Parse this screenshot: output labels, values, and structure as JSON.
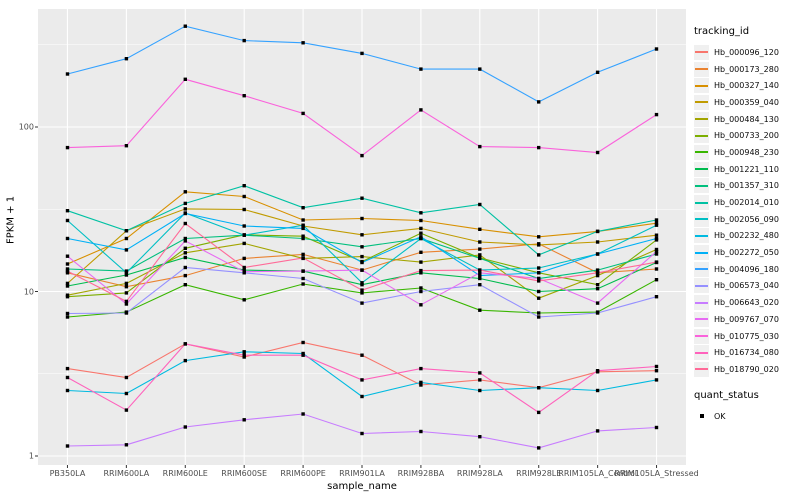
{
  "chart_data": {
    "type": "line",
    "title": "",
    "xlabel": "sample_name",
    "ylabel": "FPKM + 1",
    "y_scale": "log10",
    "ylim": [
      0.88,
      550
    ],
    "y_ticks": [
      "1",
      "10",
      "100"
    ],
    "grid": "ggplot-gray-panel-white-gridlines",
    "legend_position": "right",
    "legend_title": "tracking_id",
    "quant_legend_title": "quant_status",
    "quant_legend_items": [
      "OK"
    ],
    "marker": "black-square",
    "x_categories": [
      "PB350LA",
      "RRIM600LA",
      "RRIM600LE",
      "RRIM600SE",
      "RRIM600PE",
      "RRIM901LA",
      "RRIM928BA",
      "RRIM928LA",
      "RRIM928LE",
      "RRIM105LA_Control",
      "RRIM105LA_Stressed"
    ],
    "series": [
      {
        "name": "Hb_000096_120",
        "color": "#F8766D",
        "values": [
          3.4,
          3.0,
          4.8,
          4.0,
          4.9,
          4.1,
          2.7,
          2.9,
          2.6,
          3.25,
          3.3
        ]
      },
      {
        "name": "Hb_000173_280",
        "color": "#EA8331",
        "values": [
          13.0,
          10.7,
          12.5,
          15.9,
          16.8,
          13.5,
          17.3,
          18.1,
          19.5,
          13.0,
          13.7
        ]
      },
      {
        "name": "Hb_000327_140",
        "color": "#D89000",
        "values": [
          14.7,
          21.0,
          40.4,
          37.8,
          27.2,
          27.8,
          27.0,
          23.9,
          21.5,
          23.2,
          26.0
        ]
      },
      {
        "name": "Hb_000359_040",
        "color": "#C09B00",
        "values": [
          11.2,
          23.4,
          31.8,
          31.5,
          25.0,
          22.1,
          24.2,
          20.0,
          19.2,
          20.0,
          22.0
        ]
      },
      {
        "name": "Hb_000484_130",
        "color": "#A3A500",
        "values": [
          9.5,
          11.2,
          17.2,
          19.6,
          15.9,
          16.3,
          15.1,
          16.7,
          9.1,
          12.5,
          18.0
        ]
      },
      {
        "name": "Hb_000733_200",
        "color": "#7CAE00",
        "values": [
          9.3,
          9.8,
          18.3,
          22.1,
          21.7,
          15.2,
          22.6,
          16.0,
          13.0,
          11.0,
          20.6
        ]
      },
      {
        "name": "Hb_000948_230",
        "color": "#39B600",
        "values": [
          7.0,
          7.5,
          11.0,
          8.9,
          11.1,
          9.8,
          10.5,
          7.7,
          7.4,
          7.5,
          11.8
        ]
      },
      {
        "name": "Hb_001221_110",
        "color": "#00BB4E",
        "values": [
          10.8,
          12.6,
          16.1,
          13.5,
          13.3,
          11.0,
          13.0,
          12.0,
          10.0,
          10.4,
          15.0
        ]
      },
      {
        "name": "Hb_001357_310",
        "color": "#00BF7D",
        "values": [
          13.7,
          13.3,
          21.0,
          22.0,
          21.0,
          18.7,
          21.0,
          15.9,
          12.0,
          13.5,
          16.9
        ]
      },
      {
        "name": "Hb_002014_010",
        "color": "#00C1A3",
        "values": [
          31.0,
          23.4,
          34.3,
          44.0,
          32.3,
          36.9,
          30.1,
          33.8,
          16.7,
          23.2,
          27.2
        ]
      },
      {
        "name": "Hb_002056_090",
        "color": "#00BFC4",
        "values": [
          27.0,
          13.0,
          30.0,
          22.0,
          25.3,
          11.3,
          21.0,
          13.5,
          13.9,
          16.9,
          25.3
        ]
      },
      {
        "name": "Hb_002232_480",
        "color": "#00BAE0",
        "values": [
          2.5,
          2.4,
          3.8,
          4.3,
          4.2,
          2.3,
          2.8,
          2.5,
          2.6,
          2.5,
          2.9
        ]
      },
      {
        "name": "Hb_002272_050",
        "color": "#00B0F6",
        "values": [
          21.0,
          17.9,
          29.8,
          25.0,
          24.2,
          15.0,
          21.5,
          12.5,
          13.0,
          16.9,
          21.0
        ]
      },
      {
        "name": "Hb_004096_180",
        "color": "#35A2FF",
        "values": [
          210,
          260,
          410,
          335,
          325,
          280,
          225,
          225,
          142,
          215,
          298
        ]
      },
      {
        "name": "Hb_006573_040",
        "color": "#9590FF",
        "values": [
          7.35,
          7.4,
          14.0,
          13.0,
          12.0,
          8.5,
          10.0,
          11.0,
          7.0,
          7.4,
          9.3
        ]
      },
      {
        "name": "Hb_006643_020",
        "color": "#C77CFF",
        "values": [
          1.15,
          1.17,
          1.5,
          1.66,
          1.8,
          1.37,
          1.41,
          1.31,
          1.12,
          1.42,
          1.49
        ]
      },
      {
        "name": "Hb_009767_070",
        "color": "#E76BF3",
        "values": [
          16.4,
          8.4,
          20.3,
          13.2,
          13.3,
          13.5,
          8.3,
          13.0,
          12.0,
          8.5,
          17.5
        ]
      },
      {
        "name": "Hb_010775_030",
        "color": "#FA62DB",
        "values": [
          75,
          77,
          195,
          155,
          121,
          67,
          127,
          76,
          75,
          70,
          119
        ]
      },
      {
        "name": "Hb_016734_080",
        "color": "#FF62BC",
        "values": [
          3.0,
          1.9,
          4.8,
          4.1,
          4.1,
          2.9,
          3.4,
          3.2,
          1.84,
          3.3,
          3.5
        ]
      },
      {
        "name": "Hb_018790_020",
        "color": "#FF6A98",
        "values": [
          13.3,
          8.7,
          25.9,
          14.0,
          16.0,
          10.2,
          13.4,
          13.5,
          11.6,
          13.0,
          15.1
        ]
      }
    ]
  },
  "colors": {
    "panel_bg": "#EBEBEB",
    "grid_major": "#FFFFFF",
    "grid_minor": "#FFFFFF",
    "tick_text": "#4D4D4D",
    "tick_mark": "#333333",
    "point": "#000000",
    "legend_key_bg": "#F0F0F0"
  }
}
